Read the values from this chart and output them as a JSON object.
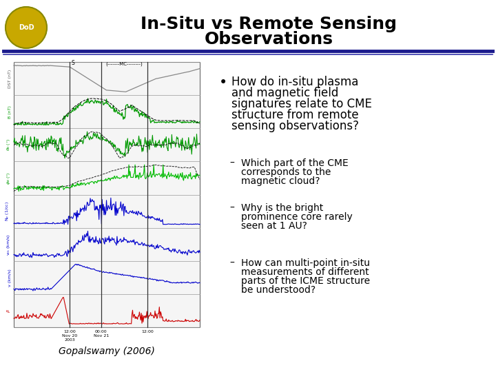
{
  "title_line1": "In-Situ vs Remote Sensing",
  "title_line2": "Observations",
  "title_fontsize": 18,
  "title_color": "#000000",
  "background_color": "#ffffff",
  "header_line_color": "#1a1a8c",
  "bullet_main_lines": [
    "How do in-situ plasma",
    "and magnetic field",
    "signatures relate to CME",
    "structure from remote",
    "sensing observations?"
  ],
  "sub_bullets": [
    [
      "Which part of the CME",
      "corresponds to the",
      "magnetic cloud?"
    ],
    [
      "Why is the bright",
      "prominence core rarely",
      "seen at 1 AU?"
    ],
    [
      "How can multi-point in-situ",
      "measurements of different",
      "parts of the ICME structure",
      "be understood?"
    ]
  ],
  "caption": "Gopalswamy (2006)",
  "bullet_fontsize": 12,
  "sub_bullet_fontsize": 10,
  "caption_fontsize": 10,
  "header_line_color2": "#3333aa"
}
